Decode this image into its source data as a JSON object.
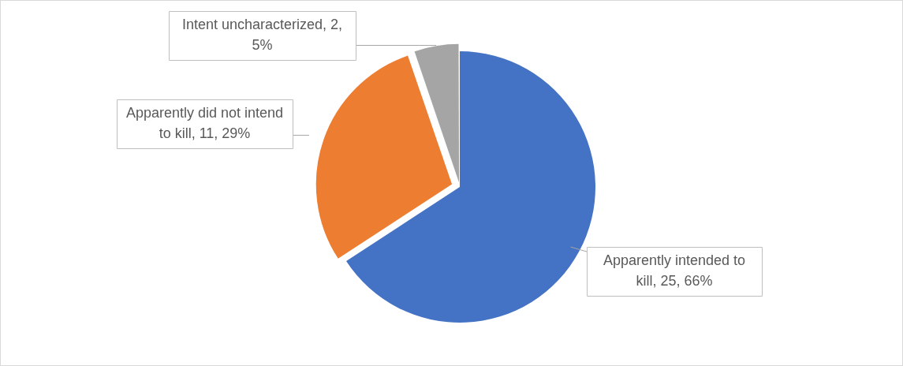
{
  "chart_data": {
    "type": "pie",
    "categories": [
      "Apparently intended to kill",
      "Apparently did not intend to kill",
      "Intent uncharacterized"
    ],
    "values": [
      25,
      11,
      2
    ],
    "colors": [
      "#4472c4",
      "#ed7d31",
      "#a5a5a5"
    ],
    "value_labels": [
      "25, 66%",
      "11, 29%",
      "2, 5%"
    ],
    "legend": false
  }
}
